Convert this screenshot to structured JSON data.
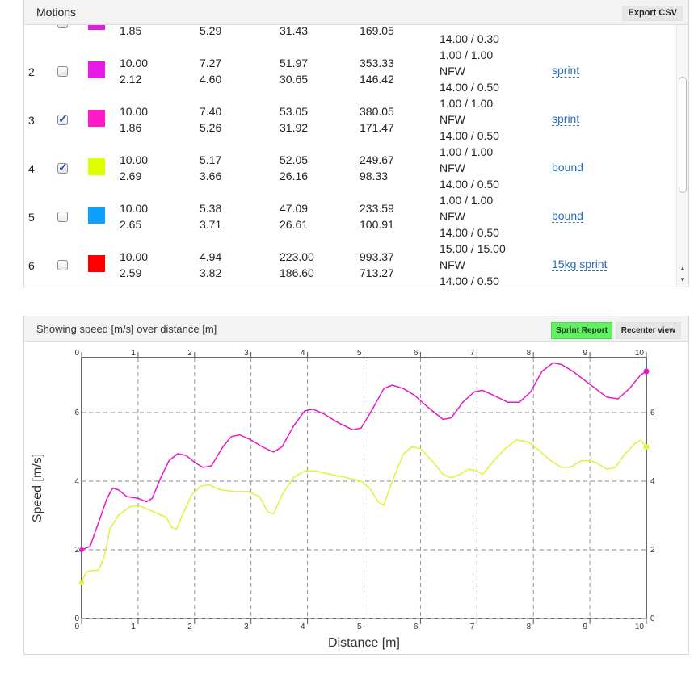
{
  "motions": {
    "title": "Motions",
    "export_label": "Export CSV",
    "rows": [
      {
        "num": "",
        "checked": false,
        "color": "#e619e6",
        "a": [
          "",
          "1.85"
        ],
        "b": [
          "",
          "5.29"
        ],
        "c": [
          "",
          "31.43"
        ],
        "d": [
          "",
          "169.05"
        ],
        "e": [
          "",
          "",
          "14.00 / 0.30"
        ],
        "type": ""
      },
      {
        "num": "2",
        "checked": false,
        "color": "#e619e6",
        "a": [
          "10.00",
          "2.12"
        ],
        "b": [
          "7.27",
          "4.60"
        ],
        "c": [
          "51.97",
          "30.65"
        ],
        "d": [
          "353.33",
          "146.42"
        ],
        "e": [
          "1.00 / 1.00",
          "NFW",
          "14.00 / 0.50"
        ],
        "type": "sprint"
      },
      {
        "num": "3",
        "checked": true,
        "color": "#ff19c8",
        "a": [
          "10.00",
          "1.86"
        ],
        "b": [
          "7.40",
          "5.26"
        ],
        "c": [
          "53.05",
          "31.92"
        ],
        "d": [
          "380.05",
          "171.47"
        ],
        "e": [
          "1.00 / 1.00",
          "NFW",
          "14.00 / 0.50"
        ],
        "type": "sprint"
      },
      {
        "num": "4",
        "checked": true,
        "color": "#ddff00",
        "a": [
          "10.00",
          "2.69"
        ],
        "b": [
          "5.17",
          "3.66"
        ],
        "c": [
          "52.05",
          "26.16"
        ],
        "d": [
          "249.67",
          "98.33"
        ],
        "e": [
          "1.00 / 1.00",
          "NFW",
          "14.00 / 0.50"
        ],
        "type": "bound"
      },
      {
        "num": "5",
        "checked": false,
        "color": "#0fa0ff",
        "a": [
          "10.00",
          "2.65"
        ],
        "b": [
          "5.38",
          "3.71"
        ],
        "c": [
          "47.09",
          "26.61"
        ],
        "d": [
          "233.59",
          "100.91"
        ],
        "e": [
          "1.00 / 1.00",
          "NFW",
          "14.00 / 0.50"
        ],
        "type": "bound"
      },
      {
        "num": "6",
        "checked": false,
        "color": "#ff0000",
        "a": [
          "10.00",
          "2.59"
        ],
        "b": [
          "4.94",
          "3.82"
        ],
        "c": [
          "223.00",
          "186.60"
        ],
        "d": [
          "993.37",
          "713.27"
        ],
        "e": [
          "15.00 / 15.00",
          "NFW",
          "14.00 / 0.50"
        ],
        "type": "15kg sprint"
      }
    ]
  },
  "chart_panel": {
    "title": "Showing speed [m/s] over distance [m]",
    "sprint_report_label": "Sprint Report",
    "recenter_label": "Recenter view"
  },
  "chart_data": {
    "type": "line",
    "xlabel": "Distance [m]",
    "ylabel": "Speed [m/s]",
    "xlim": [
      0,
      10
    ],
    "ylim": [
      0,
      7.6
    ],
    "x_ticks": [
      0,
      1,
      2,
      3,
      4,
      5,
      6,
      7,
      8,
      9,
      10
    ],
    "y_ticks": [
      0,
      2,
      4,
      6
    ],
    "grid": true,
    "series": [
      {
        "color": "#e619c8",
        "points": [
          [
            0,
            2.0
          ],
          [
            0.15,
            2.1
          ],
          [
            0.3,
            2.8
          ],
          [
            0.45,
            3.5
          ],
          [
            0.55,
            3.8
          ],
          [
            0.65,
            3.75
          ],
          [
            0.8,
            3.55
          ],
          [
            1.0,
            3.5
          ],
          [
            1.15,
            3.4
          ],
          [
            1.25,
            3.5
          ],
          [
            1.4,
            4.1
          ],
          [
            1.55,
            4.6
          ],
          [
            1.7,
            4.8
          ],
          [
            1.85,
            4.75
          ],
          [
            2.0,
            4.55
          ],
          [
            2.15,
            4.4
          ],
          [
            2.3,
            4.45
          ],
          [
            2.5,
            5.0
          ],
          [
            2.65,
            5.3
          ],
          [
            2.8,
            5.35
          ],
          [
            3.0,
            5.2
          ],
          [
            3.2,
            5.0
          ],
          [
            3.4,
            4.85
          ],
          [
            3.55,
            5.0
          ],
          [
            3.75,
            5.6
          ],
          [
            3.95,
            6.05
          ],
          [
            4.1,
            6.1
          ],
          [
            4.3,
            5.95
          ],
          [
            4.55,
            5.7
          ],
          [
            4.8,
            5.5
          ],
          [
            4.95,
            5.55
          ],
          [
            5.15,
            6.1
          ],
          [
            5.35,
            6.7
          ],
          [
            5.5,
            6.8
          ],
          [
            5.7,
            6.7
          ],
          [
            5.9,
            6.5
          ],
          [
            6.1,
            6.2
          ],
          [
            6.25,
            6.0
          ],
          [
            6.4,
            5.8
          ],
          [
            6.55,
            5.85
          ],
          [
            6.75,
            6.3
          ],
          [
            6.95,
            6.6
          ],
          [
            7.1,
            6.65
          ],
          [
            7.3,
            6.5
          ],
          [
            7.55,
            6.3
          ],
          [
            7.75,
            6.3
          ],
          [
            7.95,
            6.6
          ],
          [
            8.15,
            7.2
          ],
          [
            8.35,
            7.45
          ],
          [
            8.5,
            7.4
          ],
          [
            8.7,
            7.2
          ],
          [
            8.9,
            6.95
          ],
          [
            9.1,
            6.7
          ],
          [
            9.3,
            6.45
          ],
          [
            9.5,
            6.4
          ],
          [
            9.7,
            6.7
          ],
          [
            9.9,
            7.1
          ],
          [
            10.0,
            7.2
          ]
        ]
      },
      {
        "color": "#e3f03c",
        "points": [
          [
            0,
            1.05
          ],
          [
            0.08,
            1.35
          ],
          [
            0.2,
            1.4
          ],
          [
            0.3,
            1.4
          ],
          [
            0.4,
            1.8
          ],
          [
            0.5,
            2.6
          ],
          [
            0.65,
            3.0
          ],
          [
            0.85,
            3.25
          ],
          [
            1.0,
            3.3
          ],
          [
            1.15,
            3.2
          ],
          [
            1.35,
            3.05
          ],
          [
            1.5,
            2.95
          ],
          [
            1.6,
            2.65
          ],
          [
            1.68,
            2.6
          ],
          [
            1.78,
            3.0
          ],
          [
            1.95,
            3.6
          ],
          [
            2.1,
            3.85
          ],
          [
            2.25,
            3.9
          ],
          [
            2.45,
            3.75
          ],
          [
            2.7,
            3.7
          ],
          [
            2.95,
            3.7
          ],
          [
            3.15,
            3.55
          ],
          [
            3.3,
            3.1
          ],
          [
            3.4,
            3.05
          ],
          [
            3.55,
            3.6
          ],
          [
            3.75,
            4.1
          ],
          [
            3.95,
            4.3
          ],
          [
            4.15,
            4.3
          ],
          [
            4.4,
            4.2
          ],
          [
            4.7,
            4.1
          ],
          [
            4.95,
            4.0
          ],
          [
            5.1,
            3.8
          ],
          [
            5.25,
            3.4
          ],
          [
            5.35,
            3.3
          ],
          [
            5.5,
            4.0
          ],
          [
            5.7,
            4.8
          ],
          [
            5.85,
            5.0
          ],
          [
            6.0,
            4.95
          ],
          [
            6.2,
            4.6
          ],
          [
            6.4,
            4.2
          ],
          [
            6.55,
            4.1
          ],
          [
            6.7,
            4.2
          ],
          [
            6.85,
            4.35
          ],
          [
            7.0,
            4.3
          ],
          [
            7.1,
            4.2
          ],
          [
            7.3,
            4.6
          ],
          [
            7.5,
            4.95
          ],
          [
            7.7,
            5.2
          ],
          [
            7.9,
            5.15
          ],
          [
            8.1,
            4.9
          ],
          [
            8.3,
            4.6
          ],
          [
            8.5,
            4.4
          ],
          [
            8.65,
            4.4
          ],
          [
            8.85,
            4.6
          ],
          [
            8.95,
            4.6
          ],
          [
            9.1,
            4.55
          ],
          [
            9.3,
            4.35
          ],
          [
            9.45,
            4.4
          ],
          [
            9.6,
            4.75
          ],
          [
            9.8,
            5.1
          ],
          [
            9.9,
            5.2
          ],
          [
            10.0,
            5.0
          ]
        ]
      }
    ]
  }
}
